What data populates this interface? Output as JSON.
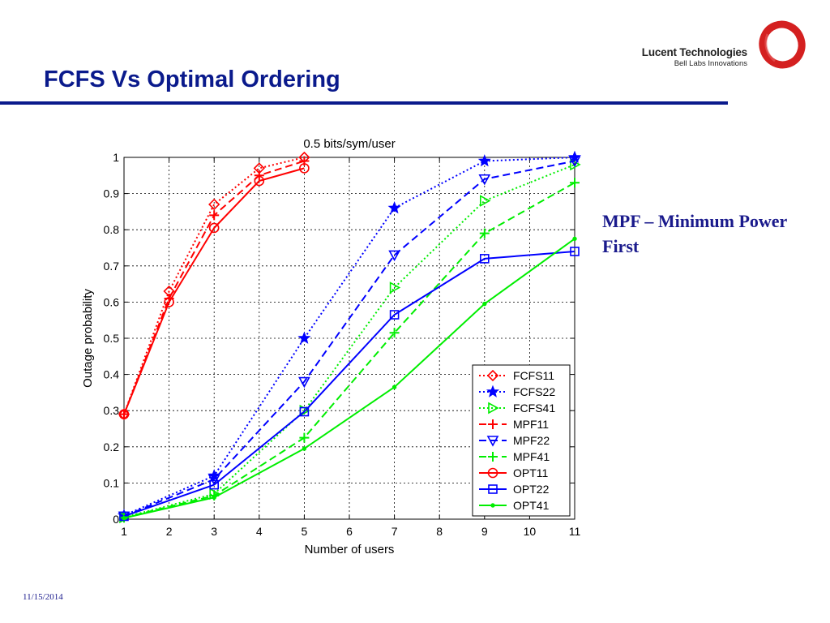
{
  "slide": {
    "title": "FCFS Vs Optimal Ordering",
    "brand_name": "Lucent Technologies",
    "brand_tagline": "Bell Labs Innovations",
    "side_note": "MPF – Minimum Power First",
    "date": "11/15/2014",
    "colors": {
      "title": "#0a1a8c",
      "note": "#1a1a8c",
      "logo": "#d42020"
    },
    "logo_icon": "red-ring-logo-icon"
  },
  "chart_data": {
    "type": "line",
    "title": "0.5 bits/sym/user",
    "xlabel": "Number of users",
    "ylabel": "Outage probability",
    "xlim": [
      1,
      11
    ],
    "ylim": [
      0,
      1
    ],
    "xticks": [
      1,
      2,
      3,
      4,
      5,
      6,
      7,
      8,
      9,
      10,
      11
    ],
    "yticks": [
      0,
      0.1,
      0.2,
      0.3,
      0.4,
      0.5,
      0.6,
      0.7,
      0.8,
      0.9,
      1
    ],
    "ytick_labels": [
      "0",
      "0.1",
      "0.2",
      "0.3",
      "0.4",
      "0.5",
      "0.6",
      "0.7",
      "0.8",
      "0.9",
      "1"
    ],
    "grid": true,
    "legend_position": "bottom-right",
    "series": [
      {
        "name": "FCFS11",
        "color": "#ff0000",
        "line": "dotted",
        "marker": "diamond",
        "x": [
          1,
          2,
          3,
          4,
          5
        ],
        "y": [
          0.29,
          0.63,
          0.87,
          0.97,
          1.0
        ]
      },
      {
        "name": "FCFS22",
        "color": "#0000ff",
        "line": "dotted",
        "marker": "star",
        "x": [
          1,
          3,
          5,
          7,
          9,
          11
        ],
        "y": [
          0.01,
          0.12,
          0.5,
          0.86,
          0.99,
          1.0
        ]
      },
      {
        "name": "FCFS41",
        "color": "#00ee00",
        "line": "dotted",
        "marker": "triangle-right",
        "x": [
          1,
          3,
          5,
          7,
          9,
          11
        ],
        "y": [
          0.005,
          0.07,
          0.3,
          0.64,
          0.88,
          0.98
        ]
      },
      {
        "name": "MPF11",
        "color": "#ff0000",
        "line": "dashed",
        "marker": "plus",
        "x": [
          1,
          2,
          3,
          4,
          5
        ],
        "y": [
          0.29,
          0.61,
          0.84,
          0.95,
          0.99
        ]
      },
      {
        "name": "MPF22",
        "color": "#0000ff",
        "line": "dashed",
        "marker": "triangle-down",
        "x": [
          1,
          3,
          5,
          7,
          9,
          11
        ],
        "y": [
          0.008,
          0.11,
          0.38,
          0.73,
          0.94,
          0.99
        ]
      },
      {
        "name": "MPF41",
        "color": "#00ee00",
        "line": "dashed",
        "marker": "plus",
        "x": [
          1,
          3,
          5,
          7,
          9,
          11
        ],
        "y": [
          0.004,
          0.065,
          0.225,
          0.515,
          0.79,
          0.93
        ]
      },
      {
        "name": "OPT11",
        "color": "#ff0000",
        "line": "solid",
        "marker": "circle",
        "x": [
          1,
          2,
          3,
          4,
          5
        ],
        "y": [
          0.29,
          0.6,
          0.805,
          0.935,
          0.97
        ]
      },
      {
        "name": "OPT22",
        "color": "#0000ff",
        "line": "solid",
        "marker": "square",
        "x": [
          1,
          3,
          5,
          7,
          9,
          11
        ],
        "y": [
          0.008,
          0.095,
          0.297,
          0.565,
          0.72,
          0.74
        ]
      },
      {
        "name": "OPT41",
        "color": "#00ee00",
        "line": "solid",
        "marker": "point",
        "x": [
          1,
          3,
          5,
          7,
          9,
          11
        ],
        "y": [
          0.003,
          0.06,
          0.195,
          0.365,
          0.595,
          0.775
        ]
      }
    ]
  }
}
